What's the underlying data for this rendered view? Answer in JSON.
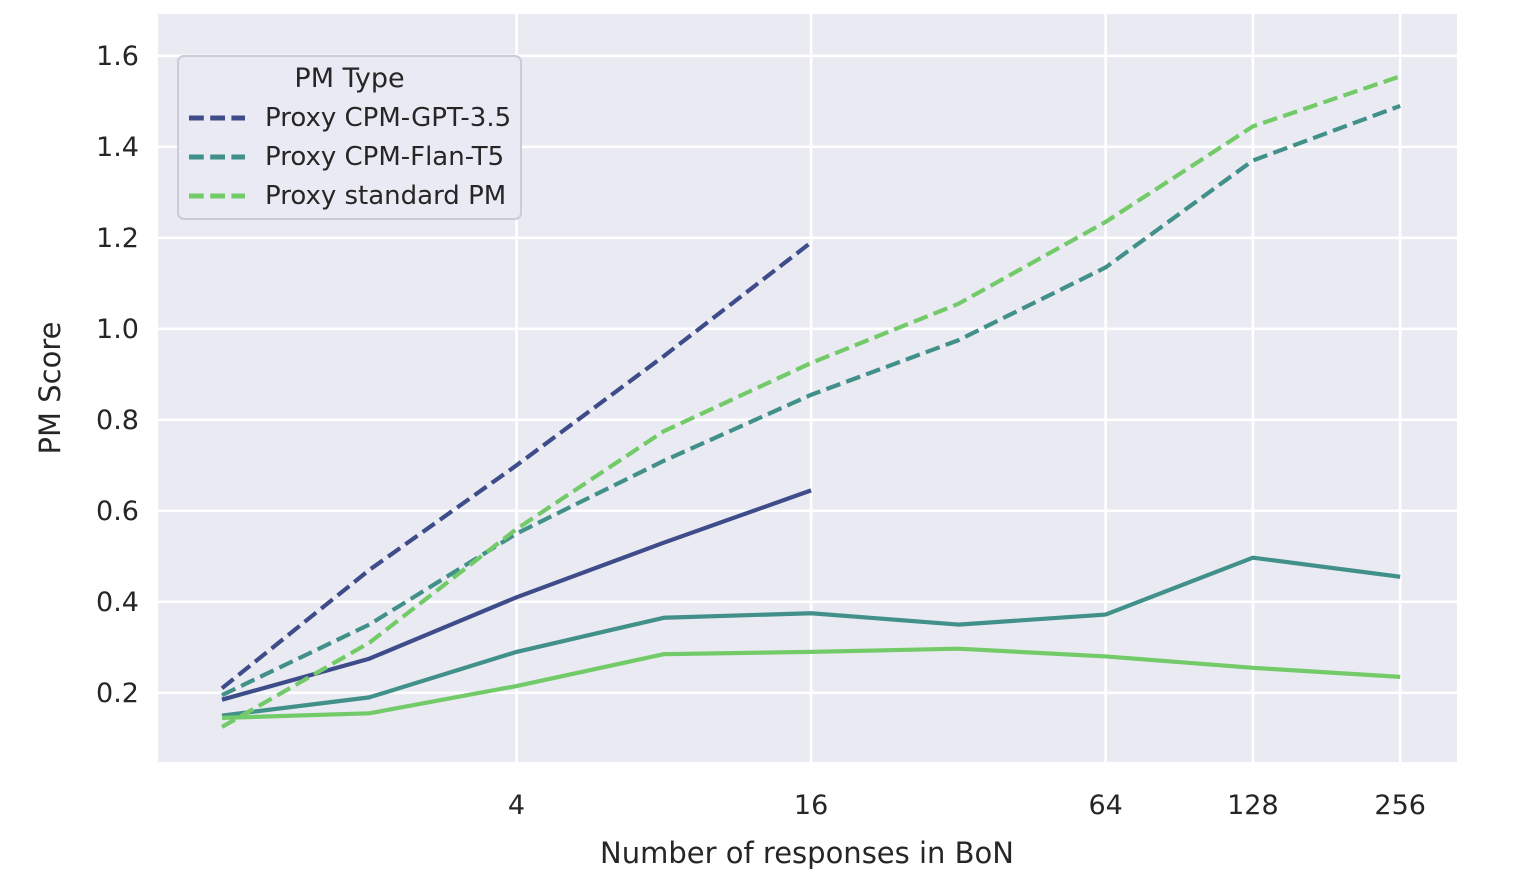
{
  "figure": {
    "background": "#ffffff",
    "plot_background": "#eaeaf2",
    "grid_color": "#ffffff",
    "text_color": "#262626"
  },
  "chart_data": {
    "type": "line",
    "title": "",
    "xlabel": "Number of responses in BoN",
    "ylabel": "PM Score",
    "x_scale": "log2",
    "xlim": [
      0.74,
      334.5
    ],
    "ylim": [
      0.048,
      1.692
    ],
    "grid": true,
    "x_ticks": {
      "values": [
        4,
        16,
        64,
        128,
        256
      ],
      "labels": [
        "4",
        "16",
        "64",
        "128",
        "256"
      ]
    },
    "y_ticks": {
      "values": [
        0.2,
        0.4,
        0.6,
        0.8,
        1.0,
        1.2,
        1.4,
        1.6
      ],
      "labels": [
        "0.2",
        "0.4",
        "0.6",
        "0.8",
        "1.0",
        "1.2",
        "1.4",
        "1.6"
      ]
    },
    "legend": {
      "title": "PM Type",
      "position": "upper left"
    },
    "series": [
      {
        "name": "Proxy CPM-GPT-3.5",
        "style": "dashed",
        "in_legend": true,
        "color": "#3e4c8a",
        "x": [
          1,
          2,
          4,
          8,
          16
        ],
        "y": [
          0.21,
          0.47,
          0.7,
          0.94,
          1.19
        ]
      },
      {
        "name": "Proxy CPM-Flan-T5",
        "style": "dashed",
        "in_legend": true,
        "color": "#41908a",
        "x": [
          1,
          2,
          4,
          8,
          16,
          32,
          64,
          128,
          256
        ],
        "y": [
          0.195,
          0.35,
          0.55,
          0.71,
          0.855,
          0.975,
          1.135,
          1.37,
          1.49
        ]
      },
      {
        "name": "Proxy standard PM",
        "style": "dashed",
        "in_legend": true,
        "color": "#72cb68",
        "x": [
          1,
          2,
          4,
          8,
          16,
          32,
          64,
          128,
          256
        ],
        "y": [
          0.125,
          0.31,
          0.56,
          0.775,
          0.925,
          1.055,
          1.235,
          1.445,
          1.555
        ]
      },
      {
        "name": "CPM-GPT-3.5 solid",
        "style": "solid",
        "in_legend": false,
        "color": "#3e4c8a",
        "x": [
          1,
          2,
          4,
          8,
          16
        ],
        "y": [
          0.185,
          0.275,
          0.41,
          0.53,
          0.645
        ]
      },
      {
        "name": "CPM-Flan-T5 solid",
        "style": "solid",
        "in_legend": false,
        "color": "#41908a",
        "x": [
          1,
          2,
          4,
          8,
          16,
          32,
          64,
          128,
          256
        ],
        "y": [
          0.15,
          0.19,
          0.29,
          0.365,
          0.375,
          0.35,
          0.372,
          0.497,
          0.455
        ]
      },
      {
        "name": "standard PM solid",
        "style": "solid",
        "in_legend": false,
        "color": "#72cb68",
        "x": [
          1,
          2,
          4,
          8,
          16,
          32,
          64,
          128,
          256
        ],
        "y": [
          0.145,
          0.155,
          0.215,
          0.285,
          0.29,
          0.297,
          0.28,
          0.255,
          0.235
        ]
      }
    ]
  }
}
